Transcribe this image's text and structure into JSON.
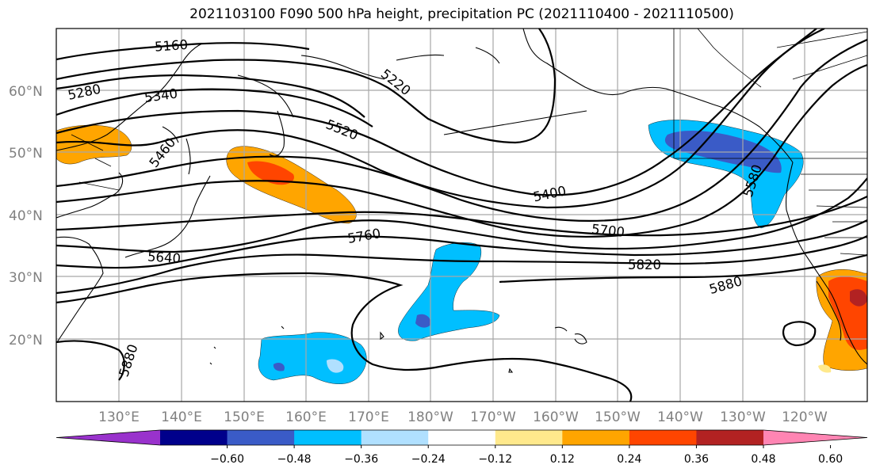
{
  "title": "2021103100 F090 500 hPa height, precipitation PC (2021110400 - 2021110500)",
  "lat_labels": [
    "60°N",
    "50°N",
    "40°N",
    "30°N",
    "20°N"
  ],
  "lon_labels": [
    "130°E",
    "140°E",
    "150°E",
    "160°E",
    "170°E",
    "180°W",
    "170°W",
    "160°W",
    "150°W",
    "140°W",
    "130°W",
    "120°W"
  ],
  "contour_labels": [
    "5160",
    "5280",
    "5340",
    "5220",
    "5520",
    "5460",
    "5400",
    "5580",
    "5760",
    "5700",
    "5640",
    "5820",
    "5880",
    "5880"
  ],
  "colorbar": {
    "ticks": [
      "−0.60",
      "−0.48",
      "−0.36",
      "−0.24",
      "−0.12",
      "0.12",
      "0.24",
      "0.36",
      "0.48",
      "0.60"
    ],
    "colors": [
      "#9932cc",
      "#00008b",
      "#3a5bc7",
      "#00bfff",
      "#b0e0ff",
      "#ffffff",
      "#ffe98c",
      "#ffa500",
      "#ff4500",
      "#b22222",
      "#ff85b3"
    ]
  },
  "shading_colors": {
    "orange": "#ffa500",
    "red": "#ff4500",
    "dark_red": "#b22222",
    "light_yellow": "#ffe98c",
    "blue": "#00bfff",
    "light_blue": "#b0e0ff",
    "royal_blue": "#3a5bc7"
  }
}
